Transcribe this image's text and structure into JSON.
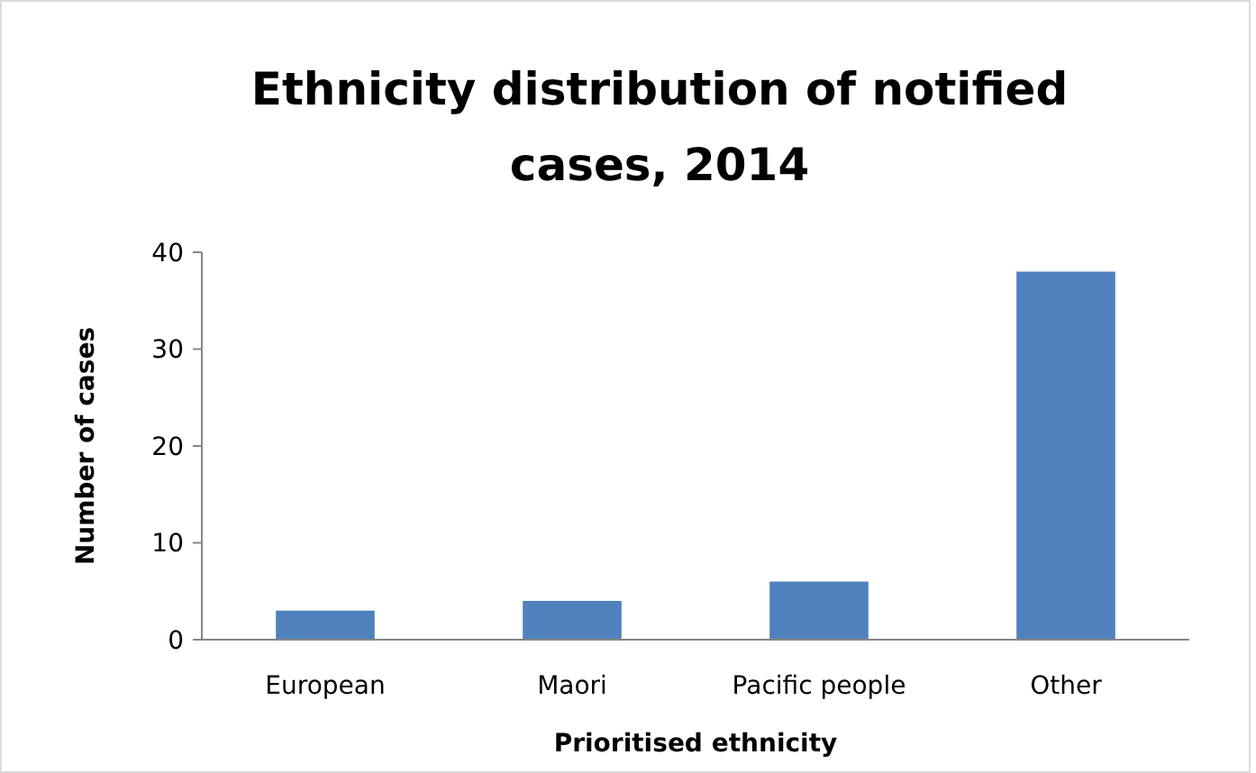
{
  "chart_data": {
    "type": "bar",
    "title": "Ethnicity distribution of notified cases, 2014",
    "xlabel": "Prioritised ethnicity",
    "ylabel": "Number of cases",
    "categories": [
      "European",
      "Maori",
      "Pacific people",
      "Other"
    ],
    "series": [
      {
        "color": "#4f81bd",
        "values": [
          3,
          4,
          6,
          38
        ]
      }
    ],
    "ylim": [
      0,
      40
    ],
    "yticks": [
      0,
      10,
      20,
      30,
      40
    ],
    "grid": false
  }
}
